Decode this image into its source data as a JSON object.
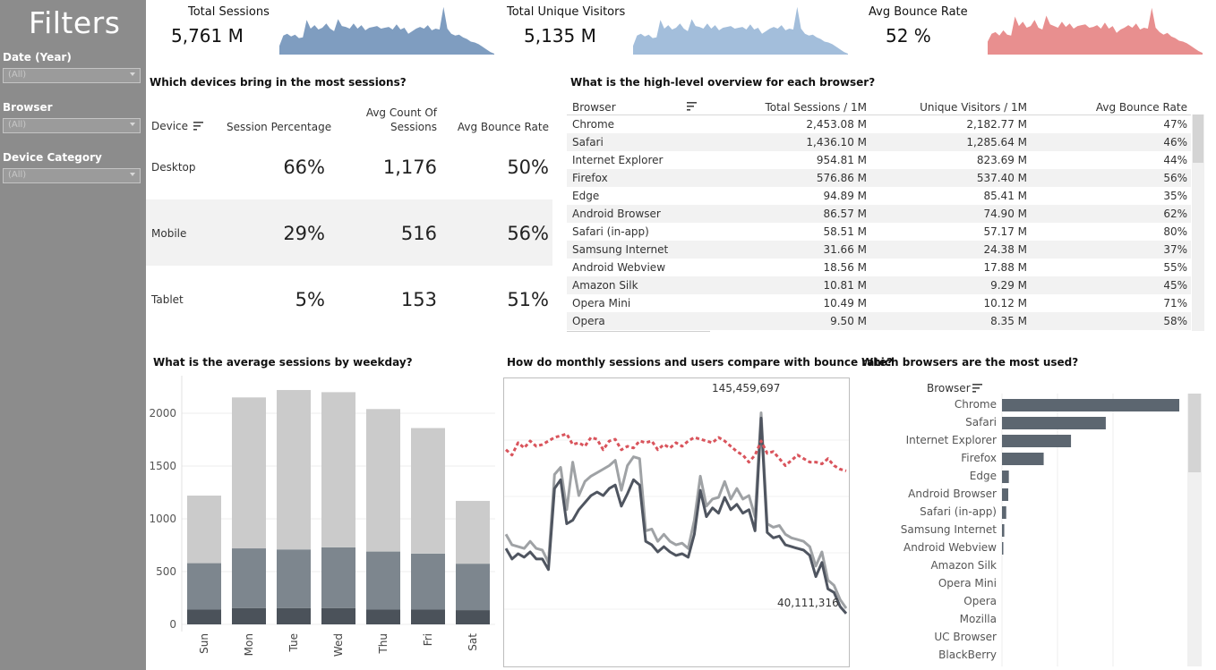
{
  "sidebar": {
    "title": "Filters",
    "filters": [
      {
        "label": "Date (Year)",
        "value": "(All)"
      },
      {
        "label": "Browser",
        "value": "(All)"
      },
      {
        "label": "Device Category",
        "value": "(All)"
      }
    ]
  },
  "kpis": [
    {
      "label": "Total Sessions",
      "value": "5,761 M",
      "color": "#7f9dc0"
    },
    {
      "label": "Total Unique Visitors",
      "value": "5,135 M",
      "color": "#a3bedb"
    },
    {
      "label": "Avg Bounce Rate",
      "value": "52 %",
      "color": "#e88f8f"
    }
  ],
  "devices": {
    "title": "Which devices bring in the most sessions?",
    "headers": {
      "device": "Device",
      "pct": "Session Percentage",
      "avg_line1": "Avg Count Of",
      "avg_line2": "Sessions",
      "bounce": "Avg Bounce Rate"
    },
    "rows": [
      {
        "device": "Desktop",
        "pct": "66%",
        "avg": "1,176",
        "bounce": "50%"
      },
      {
        "device": "Mobile",
        "pct": "29%",
        "avg": "516",
        "bounce": "56%"
      },
      {
        "device": "Tablet",
        "pct": "5%",
        "avg": "153",
        "bounce": "51%"
      }
    ]
  },
  "browsers": {
    "title": "What is the high-level overview for each browser?",
    "headers": [
      "Browser",
      "Total Sessions / 1M",
      "Unique Visitors / 1M",
      "Avg Bounce Rate"
    ],
    "rows": [
      [
        "Chrome",
        "2,453.08 M",
        "2,182.77 M",
        "47%"
      ],
      [
        "Safari",
        "1,436.10 M",
        "1,285.64 M",
        "46%"
      ],
      [
        "Internet Explorer",
        "954.81 M",
        "823.69 M",
        "44%"
      ],
      [
        "Firefox",
        "576.86 M",
        "537.40 M",
        "56%"
      ],
      [
        "Edge",
        "94.89 M",
        "85.41 M",
        "35%"
      ],
      [
        "Android Browser",
        "86.57 M",
        "74.90 M",
        "62%"
      ],
      [
        "Safari (in-app)",
        "58.51 M",
        "57.17 M",
        "80%"
      ],
      [
        "Samsung Internet",
        "31.66 M",
        "24.38 M",
        "37%"
      ],
      [
        "Android Webview",
        "18.56 M",
        "17.88 M",
        "55%"
      ],
      [
        "Amazon Silk",
        "10.81 M",
        "9.29 M",
        "45%"
      ],
      [
        "Opera Mini",
        "10.49 M",
        "10.12 M",
        "71%"
      ],
      [
        "Opera",
        "9.50 M",
        "8.35 M",
        "58%"
      ]
    ]
  },
  "weekday": {
    "title": "What is the average sessions by weekday?"
  },
  "monthly": {
    "title": "How do monthly sessions and users compare with bounce rate?",
    "max_label": "145,459,697",
    "min_label": "40,111,316"
  },
  "most_used": {
    "title": "Which browsers are the most used?",
    "axis_label": "Browser"
  },
  "chart_data": [
    {
      "type": "area",
      "title": "",
      "series": [
        {
          "name": "Total Sessions",
          "values": [
            10,
            22,
            24,
            21,
            23,
            19,
            20,
            40,
            30,
            34,
            29,
            31,
            36,
            30,
            27,
            41,
            33,
            32,
            30,
            36,
            30,
            34,
            28,
            31,
            32,
            33,
            30,
            31,
            32,
            29,
            35,
            29,
            31,
            24,
            27,
            30,
            32,
            30,
            34,
            28,
            30,
            29,
            55,
            30,
            24,
            22,
            23,
            20,
            18,
            15,
            14,
            12,
            9,
            6,
            3,
            1
          ]
        },
        {
          "name": "Total Unique Visitors",
          "values": [
            10,
            22,
            24,
            21,
            23,
            19,
            20,
            40,
            30,
            34,
            29,
            31,
            36,
            30,
            27,
            41,
            33,
            32,
            30,
            36,
            30,
            34,
            28,
            31,
            32,
            33,
            30,
            31,
            32,
            29,
            35,
            29,
            31,
            24,
            27,
            30,
            32,
            30,
            34,
            28,
            30,
            29,
            55,
            30,
            24,
            22,
            23,
            20,
            18,
            15,
            14,
            12,
            9,
            6,
            3,
            1
          ]
        },
        {
          "name": "Avg Bounce Rate",
          "values": [
            15,
            24,
            26,
            22,
            28,
            23,
            22,
            44,
            33,
            38,
            31,
            33,
            40,
            31,
            29,
            45,
            35,
            33,
            31,
            38,
            32,
            36,
            30,
            33,
            34,
            35,
            31,
            32,
            34,
            30,
            37,
            30,
            33,
            25,
            29,
            31,
            34,
            31,
            36,
            29,
            31,
            30,
            54,
            31,
            26,
            23,
            25,
            21,
            19,
            16,
            15,
            13,
            10,
            7,
            4,
            2
          ]
        }
      ]
    },
    {
      "type": "bar",
      "title": "What is the average sessions by weekday?",
      "categories": [
        "Sun",
        "Mon",
        "Tue",
        "Wed",
        "Thu",
        "Fri",
        "Sat"
      ],
      "series": [
        {
          "name": "Desktop",
          "values": [
            1220,
            2150,
            2220,
            2200,
            2040,
            1860,
            1170
          ],
          "color": "#cbcbcb"
        },
        {
          "name": "Mobile",
          "values": [
            580,
            720,
            710,
            730,
            690,
            670,
            575
          ],
          "color": "#7d868e"
        },
        {
          "name": "Tablet",
          "values": [
            140,
            155,
            155,
            155,
            140,
            140,
            135
          ],
          "color": "#4b525a"
        }
      ],
      "yticks": [
        0,
        500,
        1000,
        1500,
        2000
      ],
      "ylim": [
        0,
        2300
      ]
    },
    {
      "type": "line",
      "title": "How do monthly sessions and users compare with bounce rate?",
      "annotations": [
        "145,459,697",
        "40,111,316"
      ],
      "series": [
        {
          "name": "Sessions",
          "color": "#9fa2a5",
          "values": [
            74,
            68,
            67,
            66,
            70,
            66,
            65,
            58,
            108,
            112,
            88,
            115,
            96,
            104,
            107,
            109,
            111,
            113,
            116,
            99,
            113,
            118,
            117,
            76,
            77,
            70,
            74,
            70,
            68,
            69,
            66,
            82,
            107,
            90,
            94,
            95,
            104,
            94,
            100,
            94,
            96,
            84,
            143,
            80,
            78,
            79,
            74,
            72,
            71,
            70,
            67,
            56,
            64,
            48,
            45,
            37,
            32
          ]
        },
        {
          "name": "Users",
          "color": "#4f5560",
          "values": [
            66,
            60,
            63,
            61,
            64,
            60,
            60,
            54,
            100,
            105,
            80,
            82,
            88,
            92,
            96,
            98,
            96,
            100,
            102,
            90,
            97,
            105,
            102,
            70,
            68,
            64,
            67,
            64,
            62,
            63,
            61,
            74,
            99,
            84,
            89,
            86,
            95,
            88,
            91,
            86,
            88,
            76,
            140,
            75,
            72,
            73,
            68,
            67,
            66,
            65,
            62,
            50,
            58,
            43,
            41,
            33,
            29
          ]
        },
        {
          "name": "Bounce Rate",
          "color": "#d9545c",
          "values": [
            122,
            119,
            126,
            123,
            127,
            124,
            125,
            127,
            129,
            130,
            131,
            125,
            126,
            124,
            129,
            128,
            122,
            127,
            128,
            122,
            124,
            123,
            127,
            126,
            127,
            122,
            125,
            123,
            126,
            124,
            127,
            129,
            128,
            127,
            126,
            129,
            127,
            124,
            121,
            119,
            115,
            119,
            127,
            120,
            121,
            117,
            113,
            116,
            119,
            117,
            115,
            115,
            114,
            117,
            113,
            111,
            110
          ]
        }
      ]
    },
    {
      "type": "bar",
      "title": "Which browsers are the most used?",
      "categories": [
        "Chrome",
        "Safari",
        "Internet Explorer",
        "Firefox",
        "Edge",
        "Android Browser",
        "Safari (in-app)",
        "Samsung Internet",
        "Android Webview",
        "Amazon Silk",
        "Opera Mini",
        "Opera",
        "Mozilla",
        "UC Browser",
        "BlackBerry"
      ],
      "values": [
        2453.08,
        1436.1,
        954.81,
        576.86,
        94.89,
        86.57,
        58.51,
        31.66,
        18.56,
        10.81,
        10.49,
        9.5,
        3.0,
        2.5,
        2.0
      ],
      "color": "#5c6670"
    }
  ]
}
